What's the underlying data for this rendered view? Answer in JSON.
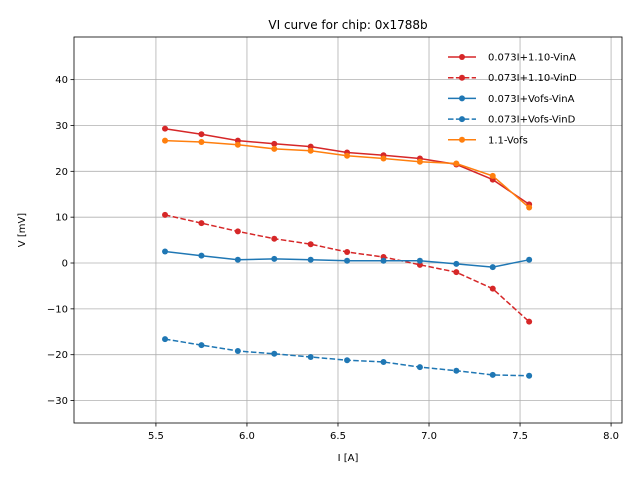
{
  "chart_data": {
    "type": "line",
    "title": "VI curve for chip: 0x1788b",
    "xlabel": "I [A]",
    "ylabel": "V [mV]",
    "xlim": [
      5.05,
      8.06
    ],
    "ylim": [
      -34.9,
      49.3
    ],
    "xticks": [
      5.5,
      6.0,
      6.5,
      7.0,
      7.5,
      8.0
    ],
    "xtick_labels": [
      "5.5",
      "6.0",
      "6.5",
      "7.0",
      "7.5",
      "8.0"
    ],
    "yticks": [
      -30,
      -20,
      -10,
      0,
      10,
      20,
      30,
      40
    ],
    "ytick_labels": [
      "−30",
      "−20",
      "−10",
      "0",
      "10",
      "20",
      "30",
      "40"
    ],
    "grid": true,
    "legend_position": "top-right",
    "x": [
      5.55,
      5.75,
      5.95,
      6.15,
      6.35,
      6.55,
      6.75,
      6.95,
      7.15,
      7.35,
      7.55
    ],
    "series": [
      {
        "name": "0.073I+1.10-VinA",
        "color": "#d62728",
        "dashed": false,
        "values": [
          29.3,
          28.1,
          26.7,
          26.0,
          25.4,
          24.1,
          23.5,
          22.8,
          21.5,
          18.2,
          12.8
        ]
      },
      {
        "name": "0.073I+1.10-VinD",
        "color": "#d62728",
        "dashed": true,
        "values": [
          10.5,
          8.7,
          6.9,
          5.3,
          4.1,
          2.4,
          1.3,
          -0.4,
          -2.0,
          -5.6,
          -12.8
        ]
      },
      {
        "name": "0.073I+Vofs-VinA",
        "color": "#1f77b4",
        "dashed": false,
        "values": [
          2.5,
          1.6,
          0.7,
          0.9,
          0.7,
          0.5,
          0.5,
          0.5,
          -0.2,
          -0.9,
          0.7
        ]
      },
      {
        "name": "0.073I+Vofs-VinD",
        "color": "#1f77b4",
        "dashed": true,
        "values": [
          -16.6,
          -17.9,
          -19.2,
          -19.8,
          -20.5,
          -21.2,
          -21.6,
          -22.7,
          -23.5,
          -24.4,
          -24.6
        ]
      },
      {
        "name": "1.1-Vofs",
        "color": "#ff7f0e",
        "dashed": false,
        "values": [
          26.7,
          26.4,
          25.8,
          24.9,
          24.5,
          23.4,
          22.8,
          22.1,
          21.7,
          19.0,
          12.1
        ]
      }
    ]
  }
}
